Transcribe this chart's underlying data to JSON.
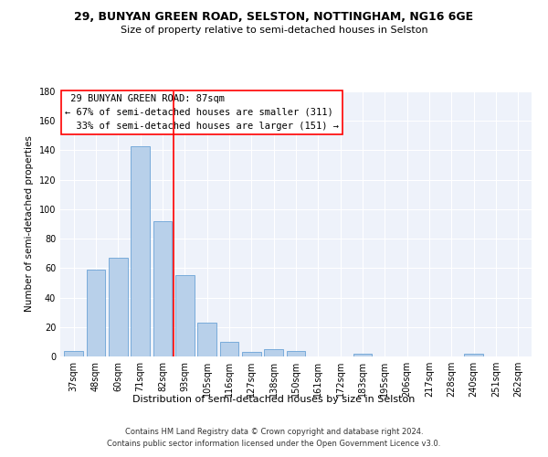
{
  "title1": "29, BUNYAN GREEN ROAD, SELSTON, NOTTINGHAM, NG16 6GE",
  "title2": "Size of property relative to semi-detached houses in Selston",
  "xlabel": "Distribution of semi-detached houses by size in Selston",
  "ylabel": "Number of semi-detached properties",
  "footer1": "Contains HM Land Registry data © Crown copyright and database right 2024.",
  "footer2": "Contains public sector information licensed under the Open Government Licence v3.0.",
  "categories": [
    "37sqm",
    "48sqm",
    "60sqm",
    "71sqm",
    "82sqm",
    "93sqm",
    "105sqm",
    "116sqm",
    "127sqm",
    "138sqm",
    "150sqm",
    "161sqm",
    "172sqm",
    "183sqm",
    "195sqm",
    "206sqm",
    "217sqm",
    "228sqm",
    "240sqm",
    "251sqm",
    "262sqm"
  ],
  "values": [
    4,
    59,
    67,
    143,
    92,
    55,
    23,
    10,
    3,
    5,
    4,
    0,
    0,
    2,
    0,
    0,
    0,
    0,
    2,
    0,
    0
  ],
  "bar_color": "#b8d0ea",
  "bar_edge_color": "#6ba3d6",
  "vline_color": "red",
  "vline_pos": 4.5,
  "property_label": "29 BUNYAN GREEN ROAD: 87sqm",
  "pct_smaller": 67,
  "n_smaller": 311,
  "pct_larger": 33,
  "n_larger": 151,
  "ylim": [
    0,
    180
  ],
  "yticks": [
    0,
    20,
    40,
    60,
    80,
    100,
    120,
    140,
    160,
    180
  ],
  "background_color": "#eef2fa",
  "grid_color": "white",
  "title_fontsize": 9,
  "subtitle_fontsize": 8,
  "xlabel_fontsize": 8,
  "ylabel_fontsize": 7.5,
  "tick_fontsize": 7,
  "annotation_fontsize": 7.5,
  "footer_fontsize": 6
}
